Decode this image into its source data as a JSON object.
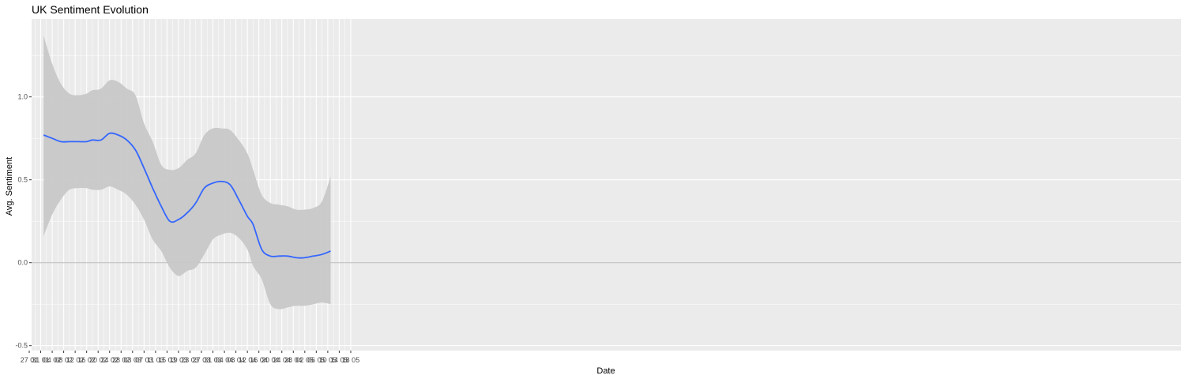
{
  "chart_data": {
    "type": "line",
    "title": "UK Sentiment Evolution",
    "xlabel": "Date",
    "ylabel": "Avg. Sentiment",
    "x_tick_labels": [
      "27 01",
      "31 01",
      "04 02",
      "08 02",
      "12 02",
      "16 02",
      "20 02",
      "24 02",
      "28 02",
      "03 03",
      "07 03",
      "11 03",
      "15 03",
      "19 03",
      "23 03",
      "27 03",
      "31 03",
      "04 04",
      "08 04",
      "12 04",
      "16 04",
      "20 04",
      "24 04",
      "28 04",
      "02 05",
      "06 05",
      "10 05",
      "14 05",
      "18 05"
    ],
    "y_tick_labels": [
      "-0.5",
      "0.0",
      "0.5",
      "1.0"
    ],
    "xlim": [
      0,
      112
    ],
    "ylim": [
      -0.53,
      1.47
    ],
    "reference_line_y": 0,
    "grid": true,
    "series": [
      {
        "x": [
          5,
          8,
          11,
          14,
          17,
          20,
          22,
          25,
          28,
          31,
          34,
          37,
          40,
          43,
          46,
          49,
          52,
          55,
          58,
          61,
          64,
          67,
          70,
          73,
          76,
          78,
          81,
          84,
          87,
          90,
          93,
          96,
          99,
          102,
          105
        ],
        "y": [
          0.77,
          0.75,
          0.73,
          0.73,
          0.73,
          0.73,
          0.74,
          0.74,
          0.78,
          0.77,
          0.74,
          0.68,
          0.57,
          0.45,
          0.34,
          0.25,
          0.26,
          0.3,
          0.36,
          0.45,
          0.48,
          0.49,
          0.47,
          0.38,
          0.28,
          0.23,
          0.08,
          0.04,
          0.04,
          0.04,
          0.03,
          0.03,
          0.04,
          0.05,
          0.07
        ],
        "lower": [
          0.16,
          0.29,
          0.38,
          0.44,
          0.45,
          0.45,
          0.44,
          0.44,
          0.46,
          0.44,
          0.41,
          0.35,
          0.26,
          0.14,
          0.07,
          -0.03,
          -0.08,
          -0.05,
          -0.03,
          0.05,
          0.14,
          0.17,
          0.18,
          0.15,
          0.08,
          -0.02,
          -0.1,
          -0.25,
          -0.28,
          -0.27,
          -0.26,
          -0.26,
          -0.25,
          -0.24,
          -0.25
        ],
        "upper": [
          1.37,
          1.2,
          1.08,
          1.02,
          1.01,
          1.02,
          1.04,
          1.05,
          1.1,
          1.09,
          1.05,
          1.01,
          0.84,
          0.73,
          0.59,
          0.56,
          0.57,
          0.62,
          0.66,
          0.77,
          0.81,
          0.81,
          0.8,
          0.74,
          0.66,
          0.56,
          0.41,
          0.36,
          0.35,
          0.34,
          0.32,
          0.32,
          0.33,
          0.37,
          0.52
        ]
      }
    ],
    "colors": {
      "line": "#3366FF",
      "band": "#C8C8C8",
      "panel": "#EBEBEB",
      "grid": "#FFFFFF",
      "zero_line": "#B8B8B8"
    }
  }
}
